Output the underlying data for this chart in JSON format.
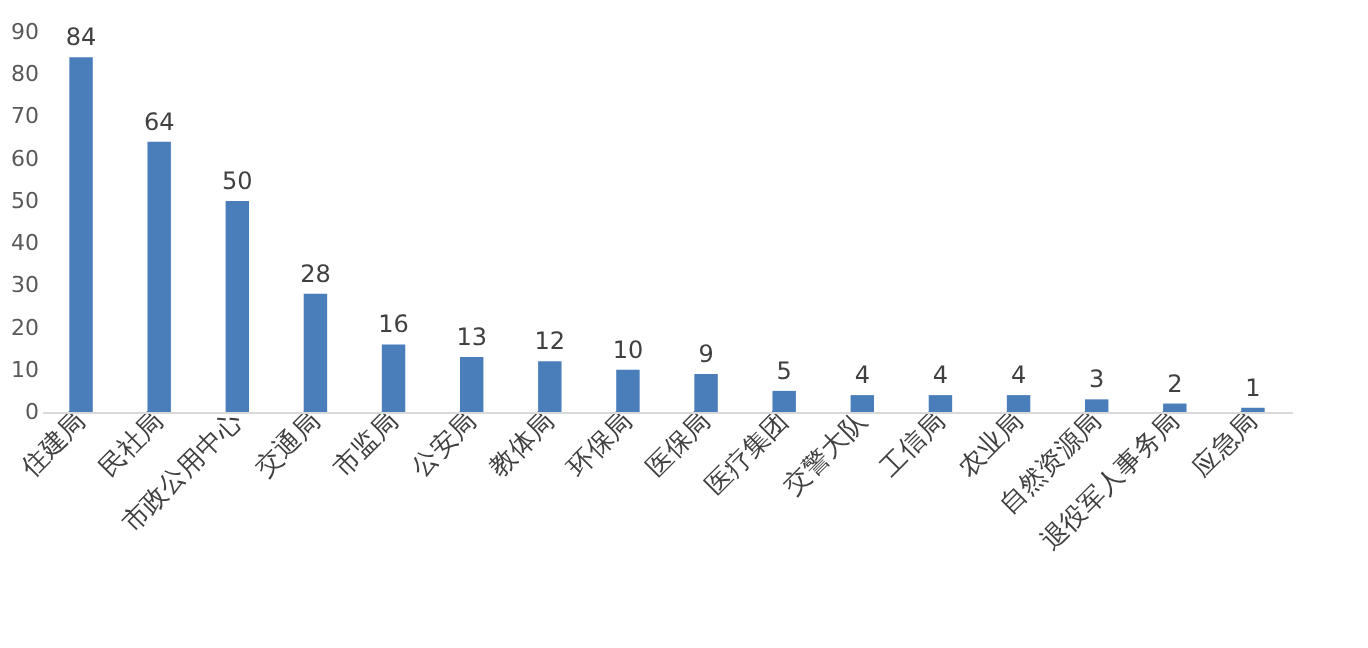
{
  "chart_data": {
    "type": "bar",
    "categories": [
      "住建局",
      "民社局",
      "市政公用中心",
      "交通局",
      "市监局",
      "公安局",
      "教体局",
      "环保局",
      "医保局",
      "医疗集团",
      "交警大队",
      "工信局",
      "农业局",
      "自然资源局",
      "退役军人事务局",
      "应急局"
    ],
    "values": [
      84,
      64,
      50,
      28,
      16,
      13,
      12,
      10,
      9,
      5,
      4,
      4,
      4,
      3,
      2,
      1
    ],
    "color": "#4a7ebb",
    "ylim": [
      0,
      90
    ],
    "yticks": [
      0,
      10,
      20,
      30,
      40,
      50,
      60,
      70,
      80,
      90
    ],
    "data_labels": true,
    "grid": false
  }
}
